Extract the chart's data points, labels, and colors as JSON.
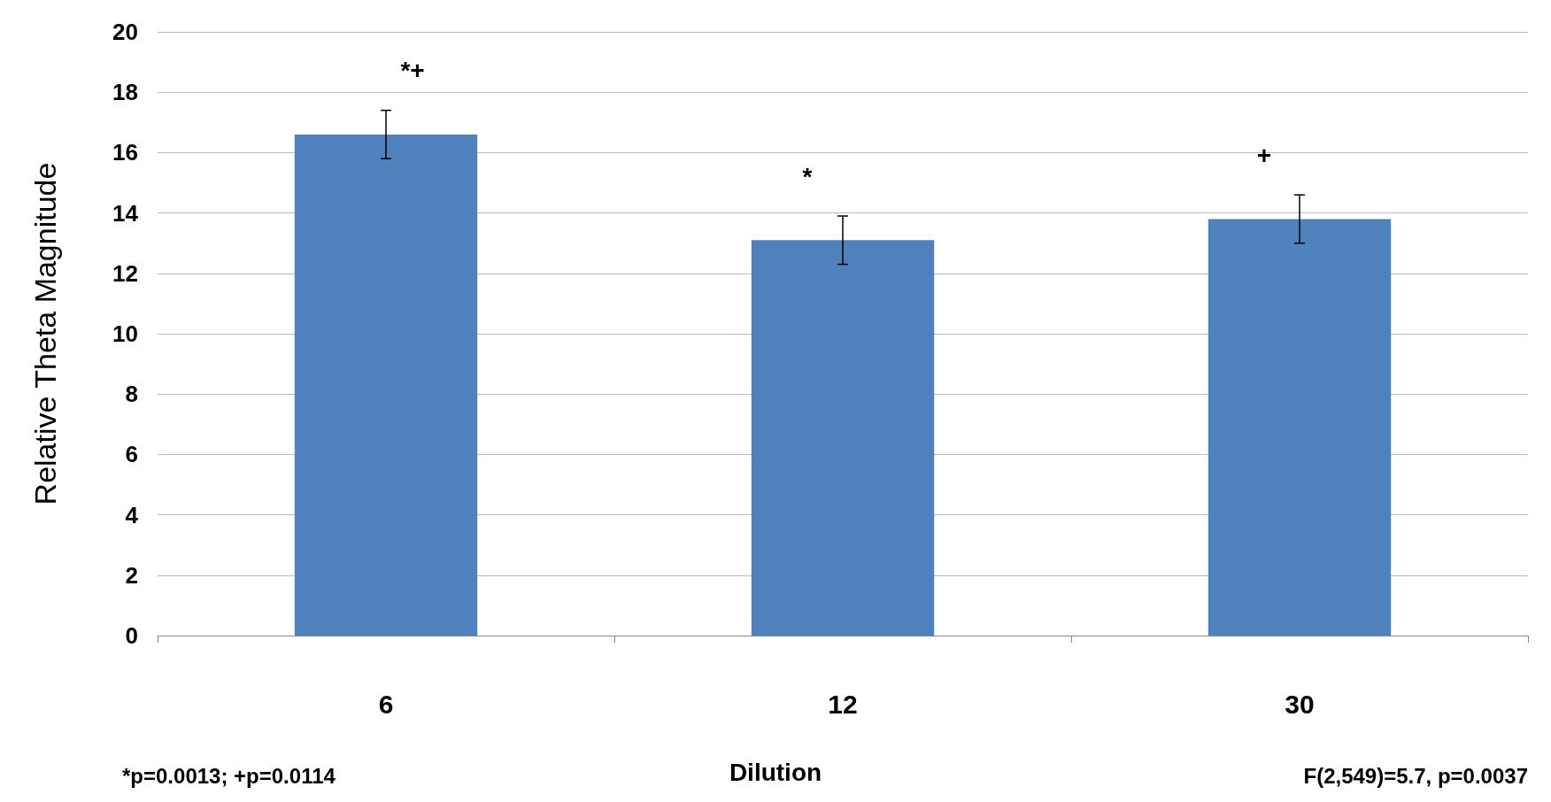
{
  "chart_data": {
    "type": "bar",
    "xlabel": "Dilution",
    "ylabel": "Relative Theta Magnitude",
    "categories": [
      "6",
      "12",
      "30"
    ],
    "values": [
      16.6,
      13.1,
      13.8
    ],
    "errors": [
      0.8,
      0.8,
      0.8
    ],
    "color": "#4f81bd",
    "ylim": [
      0,
      20
    ],
    "yticks": [
      0,
      2,
      4,
      6,
      8,
      10,
      12,
      14,
      16,
      18,
      20
    ],
    "grid": "y",
    "annotations": [
      "*+",
      "*",
      "+",
      "*p=0.0013; +p=0.0114",
      "F(2,549)=5.7, p=0.0037"
    ]
  }
}
